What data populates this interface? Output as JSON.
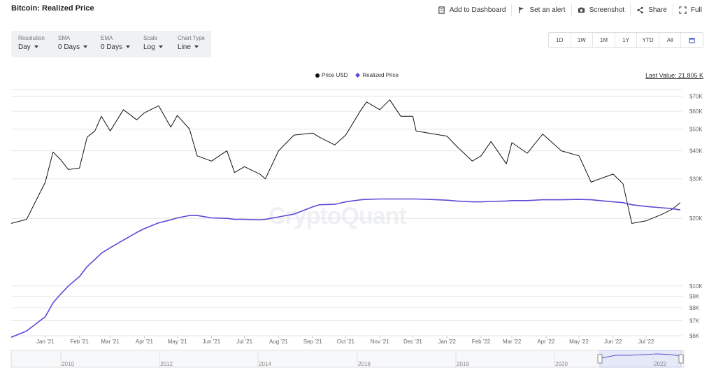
{
  "header": {
    "title": "Bitcoin: Realized Price",
    "actions": [
      {
        "label": "Add to Dashboard",
        "icon": "dashboard-icon"
      },
      {
        "label": "Set an alert",
        "icon": "flag-icon"
      },
      {
        "label": "Screenshot",
        "icon": "camera-icon"
      },
      {
        "label": "Share",
        "icon": "share-icon"
      },
      {
        "label": "Full",
        "icon": "fullscreen-icon"
      }
    ]
  },
  "controls": [
    {
      "label": "Resolution",
      "value": "Day"
    },
    {
      "label": "SMA",
      "value": "0 Days"
    },
    {
      "label": "EMA",
      "value": "0 Days"
    },
    {
      "label": "Scale",
      "value": "Log"
    },
    {
      "label": "Chart Type",
      "value": "Line"
    }
  ],
  "ranges": [
    "1D",
    "1W",
    "1M",
    "1Y",
    "YTD",
    "All"
  ],
  "calendar_icon": "calendar-icon",
  "last_value": "Last Value: 21.805 K",
  "watermark": "CryptoQuant",
  "colors": {
    "price": "#111111",
    "realized": "#5b4bd6",
    "grid": "#e6e6e6",
    "axis_text": "#666666"
  },
  "chart_data": {
    "type": "line",
    "title": "Bitcoin: Realized Price",
    "y_scale": "log",
    "ylim": [
      6000,
      75000
    ],
    "y_ticks": [
      {
        "value": 70000,
        "label": "$70K"
      },
      {
        "value": 60000,
        "label": "$60K"
      },
      {
        "value": 50000,
        "label": "$50K"
      },
      {
        "value": 40000,
        "label": "$40K"
      },
      {
        "value": 30000,
        "label": "$30K"
      },
      {
        "value": 20000,
        "label": "$20K"
      },
      {
        "value": 10000,
        "label": "$10K"
      },
      {
        "value": 9000,
        "label": "$9K"
      },
      {
        "value": 8000,
        "label": "$8K"
      },
      {
        "value": 7000,
        "label": "$7K"
      },
      {
        "value": 6000,
        "label": "$6K"
      }
    ],
    "x_ticks": [
      "Jan '21",
      "Feb '21",
      "Mar '21",
      "Apr '21",
      "May '21",
      "Jun '21",
      "Jul '21",
      "Aug '21",
      "Sep '21",
      "Oct '21",
      "Nov '21",
      "Dec '21",
      "Jan '22",
      "Feb '22",
      "Mar '22",
      "Apr '22",
      "May '22",
      "Jun '22",
      "Jul '22"
    ],
    "x": [
      "2020-12-01",
      "2020-12-15",
      "2021-01-01",
      "2021-01-08",
      "2021-01-15",
      "2021-01-22",
      "2021-02-01",
      "2021-02-08",
      "2021-02-15",
      "2021-02-21",
      "2021-03-01",
      "2021-03-13",
      "2021-03-25",
      "2021-04-01",
      "2021-04-14",
      "2021-04-25",
      "2021-05-01",
      "2021-05-12",
      "2021-05-19",
      "2021-06-01",
      "2021-06-15",
      "2021-06-22",
      "2021-07-01",
      "2021-07-15",
      "2021-07-20",
      "2021-08-01",
      "2021-08-15",
      "2021-09-01",
      "2021-09-07",
      "2021-09-21",
      "2021-10-01",
      "2021-10-15",
      "2021-10-20",
      "2021-11-01",
      "2021-11-10",
      "2021-11-20",
      "2021-12-01",
      "2021-12-04",
      "2021-12-15",
      "2022-01-01",
      "2022-01-10",
      "2022-01-24",
      "2022-02-01",
      "2022-02-10",
      "2022-02-24",
      "2022-03-01",
      "2022-03-15",
      "2022-03-29",
      "2022-04-15",
      "2022-05-01",
      "2022-05-12",
      "2022-05-20",
      "2022-06-01",
      "2022-06-10",
      "2022-06-18",
      "2022-07-01",
      "2022-07-15",
      "2022-07-25",
      "2022-08-01"
    ],
    "series": [
      {
        "name": "Price USD",
        "values": [
          19000,
          19800,
          29000,
          39500,
          36500,
          33000,
          33500,
          46000,
          49000,
          57000,
          49000,
          61000,
          55000,
          59000,
          63500,
          51000,
          57500,
          50000,
          38000,
          36000,
          40000,
          32000,
          34000,
          31500,
          30000,
          40000,
          47000,
          48000,
          46000,
          42500,
          47000,
          61000,
          66000,
          61000,
          67500,
          57000,
          57000,
          49000,
          48000,
          46500,
          41800,
          36000,
          38000,
          44000,
          35000,
          43500,
          39000,
          47500,
          40000,
          38000,
          29000,
          30000,
          31500,
          28500,
          19000,
          19500,
          20800,
          22000,
          23500
        ]
      },
      {
        "name": "Realized Price",
        "values": [
          5900,
          6300,
          7300,
          8400,
          9200,
          10000,
          11000,
          12200,
          13100,
          14000,
          14800,
          16000,
          17300,
          18000,
          19100,
          19700,
          20100,
          20600,
          20600,
          20100,
          20000,
          19800,
          19800,
          19700,
          19800,
          20300,
          20900,
          22500,
          23000,
          23100,
          23700,
          24200,
          24300,
          24400,
          24400,
          24400,
          24400,
          24400,
          24300,
          24100,
          23900,
          23700,
          23700,
          23800,
          23900,
          24000,
          24000,
          24200,
          24200,
          24300,
          24200,
          24000,
          23700,
          23500,
          23000,
          22600,
          22300,
          22100,
          21800
        ]
      }
    ]
  },
  "navigator": {
    "years": [
      "2010",
      "2012",
      "2014",
      "2016",
      "2018",
      "2020",
      "2022"
    ]
  }
}
